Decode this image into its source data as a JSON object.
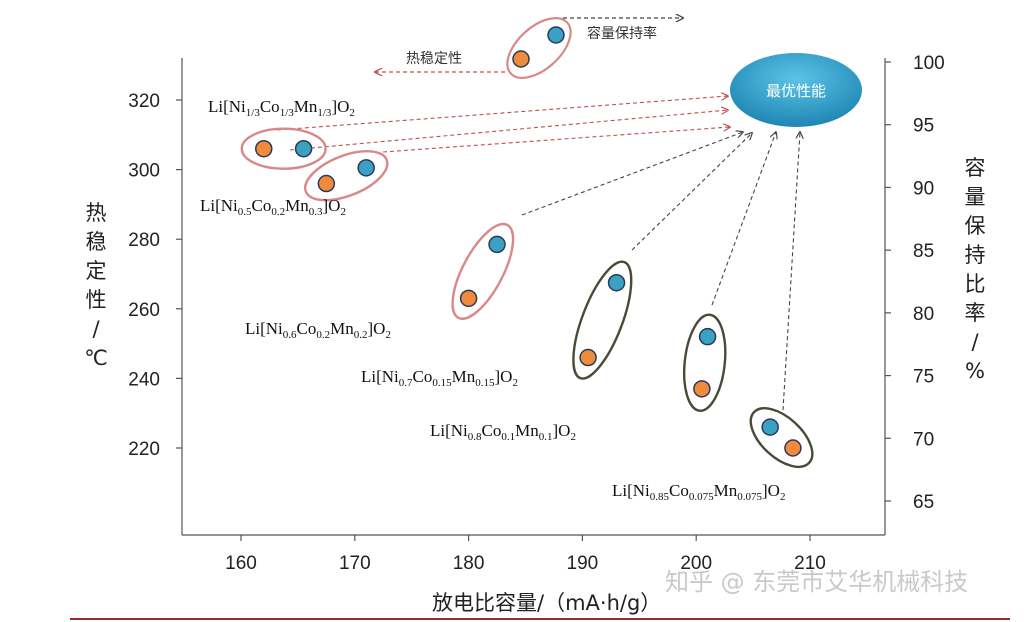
{
  "chart_data": {
    "type": "scatter",
    "xlabel": "放电比容量/（mA·h/g）",
    "ylabel_left": "热稳定性/℃",
    "ylabel_right": "容量保持比率/%",
    "xlim": [
      155,
      215
    ],
    "ylim_left": [
      195,
      330
    ],
    "ylim_right": [
      62,
      103
    ],
    "x_ticks": [
      160,
      170,
      180,
      190,
      200,
      210
    ],
    "y_left_ticks": [
      220,
      240,
      260,
      280,
      300,
      320
    ],
    "y_right_ticks": [
      65,
      70,
      75,
      80,
      85,
      90,
      95,
      100
    ],
    "grid": false,
    "legend_items": [
      {
        "label": "容量保持率",
        "color": "#3aa0c4"
      },
      {
        "label": "热稳定性",
        "color": "#f08a3c"
      }
    ],
    "target_label": "最优性能",
    "series": [
      {
        "label_main": "Li[Ni",
        "label_parts": [
          [
            "Ni",
            "1/3"
          ],
          [
            "Co",
            "1/3"
          ],
          [
            "Mn",
            "1/3"
          ]
        ],
        "label_text": "Li[Ni1/3Co1/3Mn1/3]O2",
        "thermal": {
          "x": 162,
          "y": 306
        },
        "capacity": {
          "x": 165.5,
          "y": 306
        },
        "ellipse_color": "#d9888a"
      },
      {
        "label_text": "Li[Ni0.5Co0.2Mn0.3]O2",
        "label_parts": [
          [
            "Ni",
            "0.5"
          ],
          [
            "Co",
            "0.2"
          ],
          [
            "Mn",
            "0.3"
          ]
        ],
        "thermal": {
          "x": 167.5,
          "y": 296
        },
        "capacity": {
          "x": 171,
          "y": 300.5
        },
        "ellipse_color": "#d9888a"
      },
      {
        "label_text": "Li[Ni0.6Co0.2Mn0.2]O2",
        "label_parts": [
          [
            "Ni",
            "0.6"
          ],
          [
            "Co",
            "0.2"
          ],
          [
            "Mn",
            "0.2"
          ]
        ],
        "thermal": {
          "x": 180,
          "y": 263
        },
        "capacity": {
          "x": 182.5,
          "y": 278.5
        },
        "ellipse_color": "#d9888a"
      },
      {
        "label_text": "Li[Ni0.7Co0.15Mn0.15]O2",
        "label_parts": [
          [
            "Ni",
            "0.7"
          ],
          [
            "Co",
            "0.15"
          ],
          [
            "Mn",
            "0.15"
          ]
        ],
        "thermal": {
          "x": 190.5,
          "y": 246
        },
        "capacity": {
          "x": 193,
          "y": 267.5
        },
        "ellipse_color": "#4a4a38"
      },
      {
        "label_text": "Li[Ni0.8Co0.1Mn0.1]O2",
        "label_parts": [
          [
            "Ni",
            "0.8"
          ],
          [
            "Co",
            "0.1"
          ],
          [
            "Mn",
            "0.1"
          ]
        ],
        "thermal": {
          "x": 200.5,
          "y": 237
        },
        "capacity": {
          "x": 201,
          "y": 252
        },
        "ellipse_color": "#4a4a38"
      },
      {
        "label_text": "Li[Ni0.85Co0.075Mn0.075]O2",
        "label_parts": [
          [
            "Ni",
            "0.85"
          ],
          [
            "Co",
            "0.075"
          ],
          [
            "Mn",
            "0.075"
          ]
        ],
        "thermal": {
          "x": 208.5,
          "y": 220
        },
        "capacity": {
          "x": 206.5,
          "y": 226
        },
        "ellipse_color": "#4a4a38"
      }
    ]
  },
  "watermark": "知乎 @ 东莞市艾华机械科技",
  "colors": {
    "capacity_dot": "#3aa0c4",
    "thermal_dot": "#f08a3c",
    "dot_stroke": "#2b3b55",
    "badge_fill": "#2b9cc6",
    "arrow_red": "#c0504d",
    "arrow_dark": "#444444",
    "bottom_rule": "#9b2c2c"
  }
}
